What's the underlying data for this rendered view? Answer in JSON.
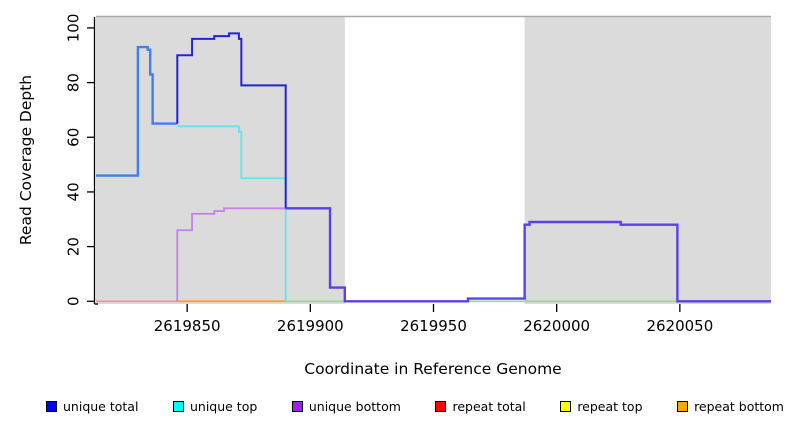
{
  "figure_title": "",
  "chart_data": {
    "type": "line",
    "subtype": "step-coverage",
    "xlabel": "Coordinate in Reference Genome",
    "ylabel": "Read Coverage Depth",
    "xlim": [
      2619813,
      2620087
    ],
    "ylim": [
      -1,
      104
    ],
    "grid": false,
    "legend_position": "bottom",
    "x_ticks": [
      2619850,
      2619900,
      2619950,
      2620000,
      2620050
    ],
    "x_tick_labels": [
      "2619850",
      "2619900",
      "2619950",
      "2620000",
      "2620050"
    ],
    "y_ticks": [
      0,
      20,
      40,
      60,
      80,
      100
    ],
    "y_tick_labels": [
      "0",
      "20",
      "40",
      "60",
      "80",
      "100"
    ],
    "shaded_regions": [
      {
        "name": "left-unique-region",
        "x0": 2619813,
        "x1": 2619914,
        "fill": "#DBDBDB"
      },
      {
        "name": "right-unique-region",
        "x0": 2619987,
        "x1": 2620087,
        "fill": "#DBDBDB"
      }
    ],
    "unshaded_region": {
      "x0": 2619914,
      "x1": 2619987
    },
    "series": [
      {
        "name": "unique total",
        "step_x": [
          2619813,
          2619830,
          2619834,
          2619835,
          2619836,
          2619846,
          2619852,
          2619861,
          2619867,
          2619871,
          2619872,
          2619890,
          2619908,
          2619914,
          2619964,
          2619987,
          2619989,
          2620026,
          2620049,
          2620087
        ],
        "step_values": [
          46,
          93,
          92,
          83,
          65,
          90,
          96,
          97,
          98,
          96,
          79,
          34,
          5,
          0,
          1,
          28,
          29,
          28,
          0
        ]
      },
      {
        "name": "unique top",
        "step_x": [
          2619813,
          2619830,
          2619834,
          2619835,
          2619836,
          2619846,
          2619871,
          2619872,
          2619890,
          2620087
        ],
        "step_values": [
          46,
          93,
          92,
          83,
          65,
          64,
          62,
          45,
          0
        ]
      },
      {
        "name": "unique bottom",
        "step_x": [
          2619813,
          2619846,
          2619852,
          2619861,
          2619865,
          2619908,
          2619914,
          2619964,
          2619987,
          2619989,
          2620026,
          2620049,
          2620087
        ],
        "step_values": [
          0,
          26,
          32,
          33,
          34,
          5,
          0,
          1,
          28,
          29,
          28,
          0
        ]
      },
      {
        "name": "repeat total",
        "step_x": [
          2619813,
          2620087
        ],
        "step_values": [
          0
        ]
      },
      {
        "name": "repeat top",
        "step_x": [
          2619813,
          2620087
        ],
        "step_values": [
          0
        ]
      },
      {
        "name": "repeat bottom",
        "step_x": [
          2619813,
          2620087
        ],
        "step_values": [
          0
        ]
      }
    ],
    "rendered_lines": [
      {
        "name": "line-repeat-total",
        "color": "#F192A6",
        "width": 1.6,
        "points": [
          [
            2619813,
            0
          ],
          [
            2619846,
            0
          ]
        ]
      },
      {
        "name": "line-repeat-bottom",
        "color": "#FF9E2C",
        "width": 1.8,
        "points": [
          [
            2619846,
            0
          ],
          [
            2619890,
            0
          ]
        ]
      },
      {
        "name": "line-unique-top-baseline",
        "color": "#92D98C",
        "width": 1.6,
        "points": [
          [
            2619890,
            0
          ],
          [
            2620050,
            0
          ]
        ]
      },
      {
        "name": "line-total-top-overlap",
        "color": "#4080EE",
        "width": 2.4,
        "points": [
          [
            2619813,
            46
          ],
          [
            2619830,
            46
          ],
          [
            2619830,
            93
          ],
          [
            2619834,
            93
          ],
          [
            2619834,
            92
          ],
          [
            2619835,
            92
          ],
          [
            2619835,
            83
          ],
          [
            2619836,
            83
          ],
          [
            2619836,
            65
          ],
          [
            2619846,
            65
          ]
        ]
      },
      {
        "name": "line-unique-top",
        "color": "#63E3F2",
        "width": 1.8,
        "points": [
          [
            2619846,
            64
          ],
          [
            2619871,
            64
          ],
          [
            2619871,
            62
          ],
          [
            2619872,
            62
          ],
          [
            2619872,
            45
          ],
          [
            2619890,
            45
          ],
          [
            2619890,
            0
          ]
        ]
      },
      {
        "name": "line-unique-bottom",
        "color": "#C383E8",
        "width": 1.8,
        "points": [
          [
            2619846,
            0
          ],
          [
            2619846,
            26
          ],
          [
            2619852,
            26
          ],
          [
            2619852,
            32
          ],
          [
            2619861,
            32
          ],
          [
            2619861,
            33
          ],
          [
            2619865,
            33
          ],
          [
            2619865,
            34
          ],
          [
            2619890,
            34
          ]
        ]
      },
      {
        "name": "line-unique-total",
        "color": "#2222DD",
        "width": 2,
        "points": [
          [
            2619846,
            65
          ],
          [
            2619846,
            90
          ],
          [
            2619852,
            90
          ],
          [
            2619852,
            96
          ],
          [
            2619861,
            96
          ],
          [
            2619861,
            97
          ],
          [
            2619867,
            97
          ],
          [
            2619867,
            98
          ],
          [
            2619871,
            98
          ],
          [
            2619871,
            96
          ],
          [
            2619872,
            96
          ],
          [
            2619872,
            79
          ],
          [
            2619890,
            79
          ],
          [
            2619890,
            34
          ]
        ]
      },
      {
        "name": "line-total-bottom-overlap",
        "color": "#5A40E6",
        "width": 2.4,
        "points": [
          [
            2619890,
            34
          ],
          [
            2619908,
            34
          ],
          [
            2619908,
            5
          ],
          [
            2619914,
            5
          ],
          [
            2619914,
            0
          ],
          [
            2619964,
            0
          ],
          [
            2619964,
            1
          ],
          [
            2619987,
            1
          ],
          [
            2619987,
            28
          ],
          [
            2619989,
            28
          ],
          [
            2619989,
            29
          ],
          [
            2620026,
            29
          ],
          [
            2620026,
            28
          ],
          [
            2620049,
            28
          ],
          [
            2620049,
            0
          ],
          [
            2620087,
            0
          ]
        ]
      }
    ],
    "axis_style": {
      "axis_color": "#000000",
      "panel_top_border_color": "#A9A9A9",
      "tick_font_size": 15,
      "y_tick_labels_rotated": true
    }
  },
  "legend": {
    "items": [
      {
        "label": "unique total",
        "color": "#0000FF"
      },
      {
        "label": "unique top",
        "color": "#00FFFF"
      },
      {
        "label": "unique bottom",
        "color": "#A020F0"
      },
      {
        "label": "repeat total",
        "color": "#FF0000"
      },
      {
        "label": "repeat top",
        "color": "#FFFF00"
      },
      {
        "label": "repeat bottom",
        "color": "#FFA500"
      }
    ]
  }
}
